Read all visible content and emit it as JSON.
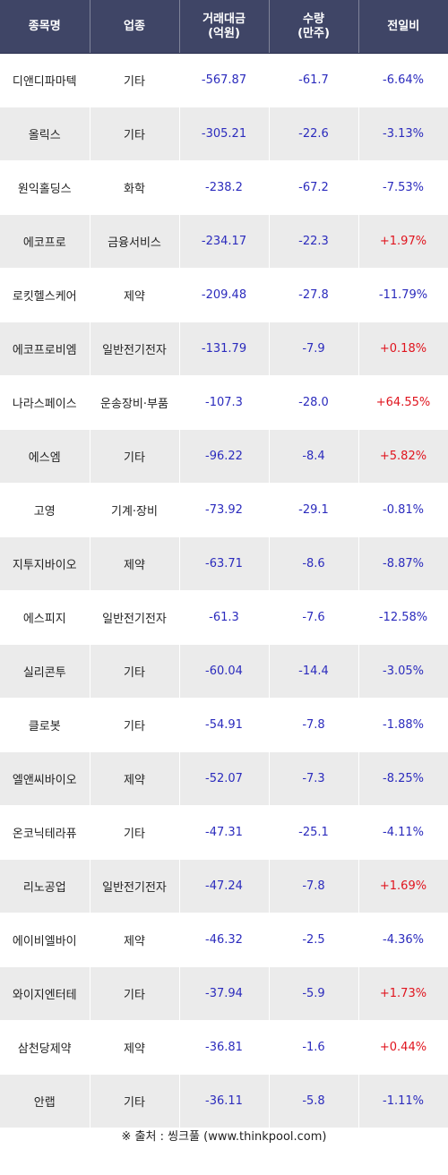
{
  "header": {
    "name": "종목명",
    "sector": "업종",
    "amount_line1": "거래대금",
    "amount_line2": "(억원)",
    "volume_line1": "수량",
    "volume_line2": "(만주)",
    "change": "전일비"
  },
  "rows": [
    {
      "name": "디앤디파마텍",
      "sector": "기타",
      "amount": "-567.87",
      "volume": "-61.7",
      "change": "-6.64%",
      "dir": "neg"
    },
    {
      "name": "올릭스",
      "sector": "기타",
      "amount": "-305.21",
      "volume": "-22.6",
      "change": "-3.13%",
      "dir": "neg"
    },
    {
      "name": "원익홀딩스",
      "sector": "화학",
      "amount": "-238.2",
      "volume": "-67.2",
      "change": "-7.53%",
      "dir": "neg"
    },
    {
      "name": "에코프로",
      "sector": "금융서비스",
      "amount": "-234.17",
      "volume": "-22.3",
      "change": "+1.97%",
      "dir": "pos"
    },
    {
      "name": "로킷헬스케어",
      "sector": "제약",
      "amount": "-209.48",
      "volume": "-27.8",
      "change": "-11.79%",
      "dir": "neg"
    },
    {
      "name": "에코프로비엠",
      "sector": "일반전기전자",
      "amount": "-131.79",
      "volume": "-7.9",
      "change": "+0.18%",
      "dir": "pos"
    },
    {
      "name": "나라스페이스",
      "sector": "운송장비·부품",
      "amount": "-107.3",
      "volume": "-28.0",
      "change": "+64.55%",
      "dir": "pos"
    },
    {
      "name": "에스엠",
      "sector": "기타",
      "amount": "-96.22",
      "volume": "-8.4",
      "change": "+5.82%",
      "dir": "pos"
    },
    {
      "name": "고영",
      "sector": "기계·장비",
      "amount": "-73.92",
      "volume": "-29.1",
      "change": "-0.81%",
      "dir": "neg"
    },
    {
      "name": "지투지바이오",
      "sector": "제약",
      "amount": "-63.71",
      "volume": "-8.6",
      "change": "-8.87%",
      "dir": "neg"
    },
    {
      "name": "에스피지",
      "sector": "일반전기전자",
      "amount": "-61.3",
      "volume": "-7.6",
      "change": "-12.58%",
      "dir": "neg"
    },
    {
      "name": "실리콘투",
      "sector": "기타",
      "amount": "-60.04",
      "volume": "-14.4",
      "change": "-3.05%",
      "dir": "neg"
    },
    {
      "name": "클로봇",
      "sector": "기타",
      "amount": "-54.91",
      "volume": "-7.8",
      "change": "-1.88%",
      "dir": "neg"
    },
    {
      "name": "엘앤씨바이오",
      "sector": "제약",
      "amount": "-52.07",
      "volume": "-7.3",
      "change": "-8.25%",
      "dir": "neg"
    },
    {
      "name": "온코닉테라퓨",
      "sector": "기타",
      "amount": "-47.31",
      "volume": "-25.1",
      "change": "-4.11%",
      "dir": "neg"
    },
    {
      "name": "리노공업",
      "sector": "일반전기전자",
      "amount": "-47.24",
      "volume": "-7.8",
      "change": "+1.69%",
      "dir": "pos"
    },
    {
      "name": "에이비엘바이",
      "sector": "제약",
      "amount": "-46.32",
      "volume": "-2.5",
      "change": "-4.36%",
      "dir": "neg"
    },
    {
      "name": "와이지엔터테",
      "sector": "기타",
      "amount": "-37.94",
      "volume": "-5.9",
      "change": "+1.73%",
      "dir": "pos"
    },
    {
      "name": "삼천당제약",
      "sector": "제약",
      "amount": "-36.81",
      "volume": "-1.6",
      "change": "+0.44%",
      "dir": "pos"
    },
    {
      "name": "안랩",
      "sector": "기타",
      "amount": "-36.11",
      "volume": "-5.8",
      "change": "-1.11%",
      "dir": "neg"
    }
  ],
  "source": "※ 출처 : 씽크풀 (www.thinkpool.com)",
  "colors": {
    "header_bg": "#3f4566",
    "row_alt_bg": "#ebebeb",
    "negative": "#2b2bbd",
    "positive": "#e0141e"
  }
}
